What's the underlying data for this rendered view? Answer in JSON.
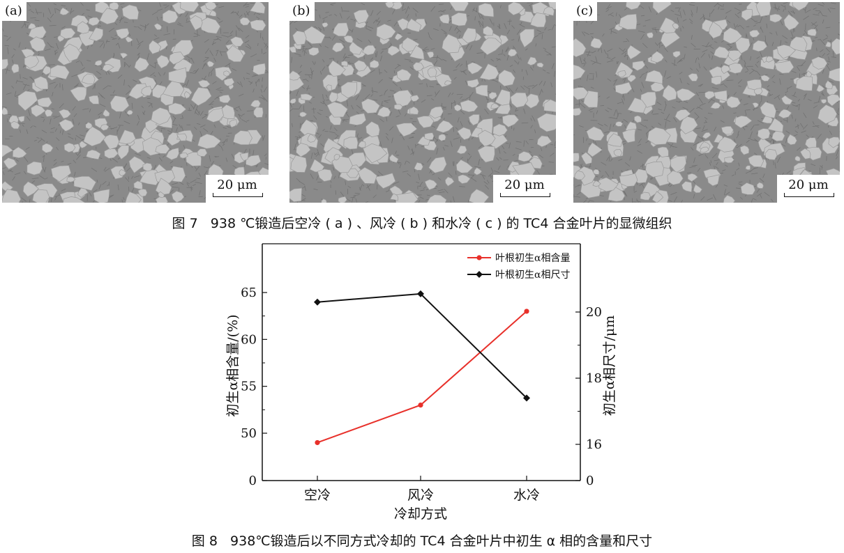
{
  "figure7": {
    "panels": [
      {
        "label": "(a)",
        "scale_bar": "20 μm"
      },
      {
        "label": "(b)",
        "scale_bar": "20 μm"
      },
      {
        "label": "(c)",
        "scale_bar": "20 μm"
      }
    ],
    "caption": "图 7   938 ℃锻造后空冷 ( a ) 、风冷 ( b ) 和水冷 ( c ) 的 TC4 合金叶片的显微组织"
  },
  "figure8": {
    "caption": "图 8   938℃锻造后以不同方式冷却的 TC4 合金叶片中初生 α 相的含量和尺寸"
  },
  "chart_data": {
    "type": "line",
    "categories": [
      "空冷",
      "风冷",
      "水冷"
    ],
    "xlabel": "冷却方式",
    "ylabel_left": "初生α相含量/(%)",
    "ylabel_right": "初生α相尺寸/μm",
    "left_axis": {
      "ticks": [
        0,
        50,
        55,
        60,
        65
      ],
      "tick_labels": [
        "0",
        "50",
        "55",
        "60",
        "65"
      ],
      "broken": true
    },
    "right_axis": {
      "ticks": [
        0,
        16,
        18,
        20
      ],
      "tick_labels": [
        "0",
        "16",
        "18",
        "20"
      ],
      "broken": true
    },
    "series": [
      {
        "name": "叶根初生α相含量",
        "axis": "left",
        "color": "#e8302a",
        "marker": "circle",
        "values": [
          49,
          53,
          63
        ]
      },
      {
        "name": "叶根初生α相尺寸",
        "axis": "right",
        "color": "#111111",
        "marker": "diamond",
        "values": [
          20.3,
          20.55,
          17.4
        ]
      }
    ],
    "legend": "top-right",
    "grid": false
  }
}
